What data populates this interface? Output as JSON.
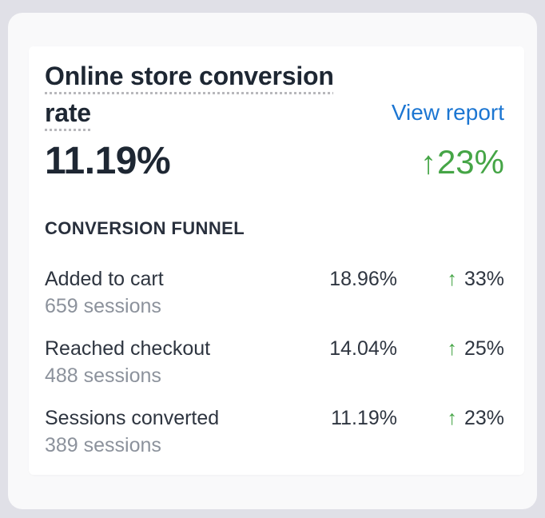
{
  "card": {
    "title": "Online store conversion rate",
    "view_report_label": "View report",
    "metric": {
      "value": "11.19%",
      "delta": "23%"
    },
    "section_header": "CONVERSION FUNNEL",
    "funnel_rows": [
      {
        "label": "Added to cart",
        "sessions": "659 sessions",
        "value": "18.96%",
        "delta": "33%"
      },
      {
        "label": "Reached checkout",
        "sessions": "488 sessions",
        "value": "14.04%",
        "delta": "25%"
      },
      {
        "label": "Sessions converted",
        "sessions": "389 sessions",
        "value": "11.19%",
        "delta": "23%"
      }
    ],
    "icons": {
      "up_arrow": "↑"
    },
    "colors": {
      "link_blue": "#1c76d2",
      "positive_green": "#45a546",
      "heading_dark": "#1e2733",
      "body_dark": "#2e3540",
      "muted_gray": "#8c929c",
      "page_background": "#e0e0e7",
      "card_background": "#f9f9fa",
      "panel_background": "#ffffff"
    }
  }
}
